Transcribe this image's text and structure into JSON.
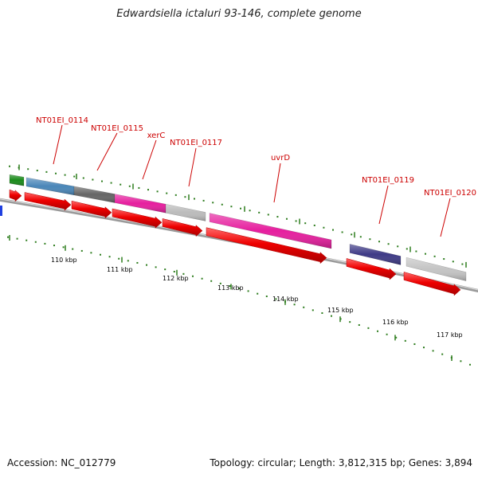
{
  "title": "Edwardsiella ictaluri 93-146, complete genome",
  "footer": {
    "accession": "Accession: NC_012779",
    "summary": "Topology: circular; Length: 3,812,315 bp; Genes: 3,894"
  },
  "colors": {
    "backbone": "#8a8a8a",
    "cds_arrow": "#ee0000",
    "label": "#cc0000",
    "tick": "#2e7d1e"
  },
  "scale": {
    "unit": "kbp",
    "labels": [
      "110 kbp",
      "111 kbp",
      "112 kbp",
      "113 kbp",
      "114 kbp",
      "115 kbp",
      "116 kbp",
      "117 kbp"
    ]
  },
  "genes": [
    {
      "label": "",
      "color": "#1a8a1a"
    },
    {
      "label": "NT01EI_0114",
      "color": "#4a86b8"
    },
    {
      "label": "NT01EI_0115",
      "color": "#666666"
    },
    {
      "label": "xerC",
      "color": "#e61e9e"
    },
    {
      "label": "NT01EI_0117",
      "color": "#bbbbbb"
    },
    {
      "label": "uvrD",
      "color": "#e61e9e"
    },
    {
      "label": "NT01EI_0119",
      "color": "#3e3a86"
    },
    {
      "label": "NT01EI_0120",
      "color": "#c4c4c4"
    }
  ]
}
